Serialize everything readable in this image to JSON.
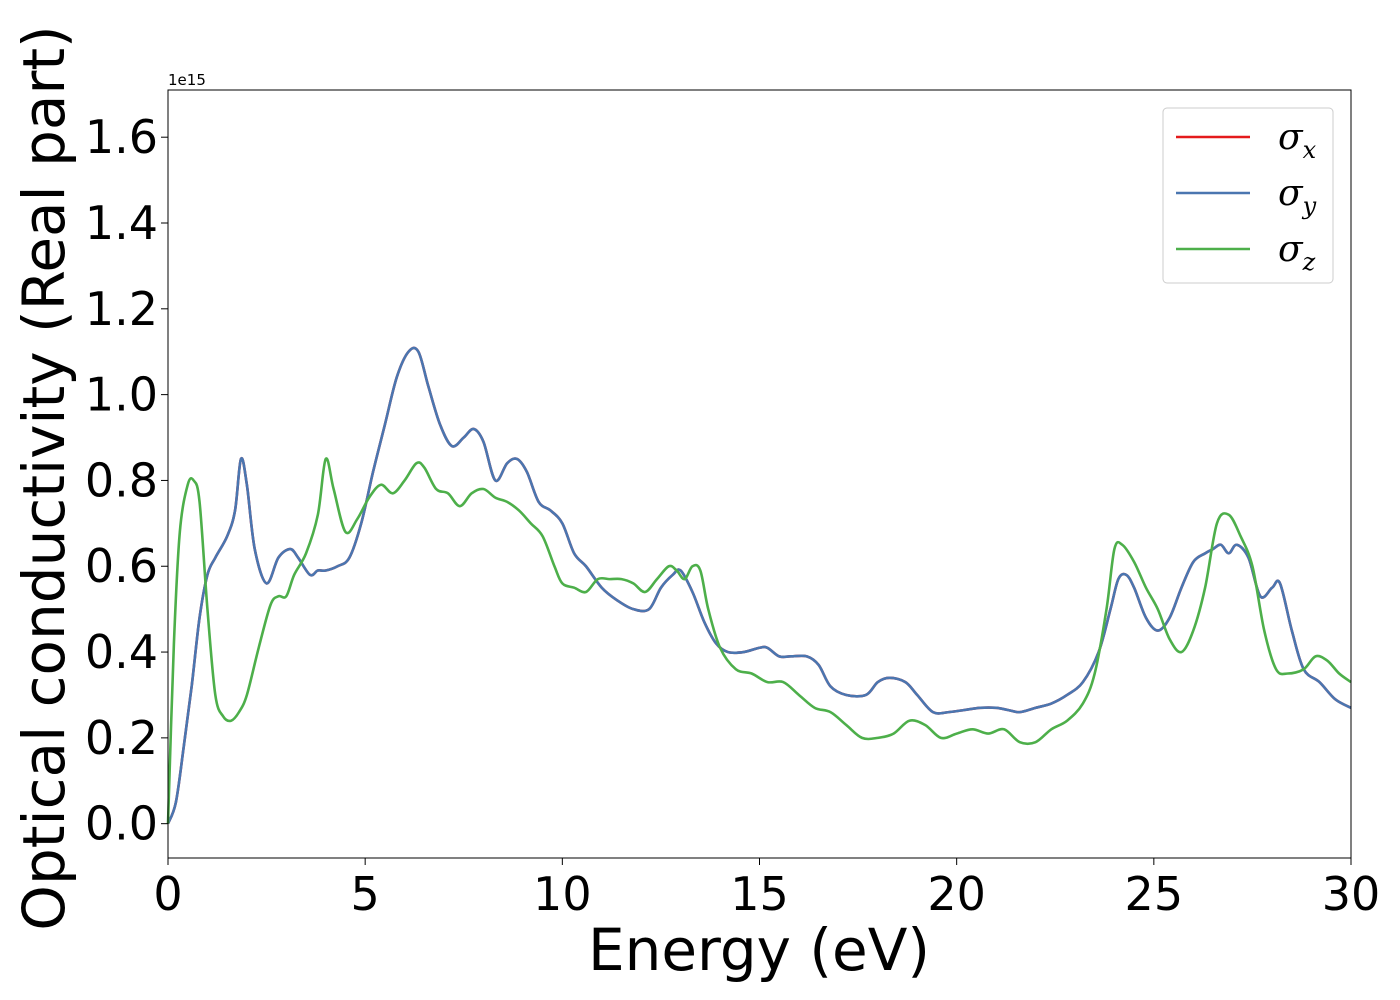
{
  "chart_data": {
    "type": "line",
    "xlabel": "Energy (eV)",
    "ylabel": "Optical conductivity (Real part)",
    "y_offset_label": "1e15",
    "xlim": [
      0,
      30
    ],
    "ylim": [
      -0.08,
      1.71
    ],
    "xticks": [
      0,
      5,
      10,
      15,
      20,
      25,
      30
    ],
    "xtick_labels": [
      "0",
      "5",
      "10",
      "15",
      "20",
      "25",
      "30"
    ],
    "yticks": [
      0.0,
      0.2,
      0.4,
      0.6,
      0.8,
      1.0,
      1.2,
      1.4,
      1.6
    ],
    "ytick_labels": [
      "0.0",
      "0.2",
      "0.4",
      "0.6",
      "0.8",
      "1.0",
      "1.2",
      "1.4",
      "1.6"
    ],
    "grid": false,
    "legend_position": "top-right",
    "series": [
      {
        "name": "σx",
        "label_main": "σ",
        "label_sub": "x",
        "color": "#e41a1c",
        "x": [
          0,
          0.2,
          0.4,
          0.6,
          0.8,
          1.0,
          1.2,
          1.5,
          1.7,
          1.85,
          2.0,
          2.2,
          2.5,
          2.8,
          3.1,
          3.3,
          3.6,
          3.8,
          4.0,
          4.3,
          4.6,
          4.9,
          5.2,
          5.5,
          5.8,
          6.1,
          6.35,
          6.6,
          6.9,
          7.2,
          7.5,
          7.75,
          8.0,
          8.3,
          8.6,
          8.85,
          9.1,
          9.4,
          9.7,
          10.0,
          10.3,
          10.6,
          11.0,
          11.4,
          11.8,
          12.2,
          12.5,
          12.8,
          13.0,
          13.3,
          13.6,
          13.9,
          14.2,
          14.6,
          15.0,
          15.2,
          15.5,
          15.8,
          16.2,
          16.5,
          16.8,
          17.2,
          17.7,
          18.0,
          18.3,
          18.7,
          19.0,
          19.4,
          19.8,
          20.2,
          20.6,
          21.0,
          21.3,
          21.6,
          22.0,
          22.4,
          22.8,
          23.2,
          23.6,
          23.9,
          24.1,
          24.3,
          24.5,
          24.8,
          25.1,
          25.4,
          25.7,
          26.0,
          26.3,
          26.5,
          26.7,
          26.9,
          27.1,
          27.4,
          27.7,
          28.0,
          28.2,
          28.5,
          28.8,
          29.2,
          29.6,
          30.0
        ],
        "y": [
          0.0,
          0.05,
          0.18,
          0.32,
          0.48,
          0.58,
          0.62,
          0.67,
          0.73,
          0.85,
          0.79,
          0.64,
          0.56,
          0.62,
          0.64,
          0.62,
          0.58,
          0.59,
          0.59,
          0.6,
          0.62,
          0.7,
          0.82,
          0.93,
          1.04,
          1.1,
          1.1,
          1.02,
          0.93,
          0.88,
          0.9,
          0.92,
          0.89,
          0.8,
          0.84,
          0.85,
          0.82,
          0.75,
          0.73,
          0.7,
          0.63,
          0.6,
          0.55,
          0.52,
          0.5,
          0.5,
          0.55,
          0.58,
          0.59,
          0.54,
          0.47,
          0.42,
          0.4,
          0.4,
          0.41,
          0.41,
          0.39,
          0.39,
          0.39,
          0.37,
          0.32,
          0.3,
          0.3,
          0.33,
          0.34,
          0.33,
          0.3,
          0.26,
          0.26,
          0.265,
          0.27,
          0.27,
          0.265,
          0.26,
          0.27,
          0.28,
          0.3,
          0.33,
          0.4,
          0.5,
          0.57,
          0.58,
          0.55,
          0.48,
          0.45,
          0.48,
          0.55,
          0.61,
          0.63,
          0.64,
          0.65,
          0.63,
          0.65,
          0.62,
          0.53,
          0.55,
          0.56,
          0.45,
          0.36,
          0.33,
          0.29,
          0.27
        ]
      },
      {
        "name": "σy",
        "label_main": "σ",
        "label_sub": "y",
        "color": "#4a76b0",
        "x": [
          0,
          0.2,
          0.4,
          0.6,
          0.8,
          1.0,
          1.2,
          1.5,
          1.7,
          1.85,
          2.0,
          2.2,
          2.5,
          2.8,
          3.1,
          3.3,
          3.6,
          3.8,
          4.0,
          4.3,
          4.6,
          4.9,
          5.2,
          5.5,
          5.8,
          6.1,
          6.35,
          6.6,
          6.9,
          7.2,
          7.5,
          7.75,
          8.0,
          8.3,
          8.6,
          8.85,
          9.1,
          9.4,
          9.7,
          10.0,
          10.3,
          10.6,
          11.0,
          11.4,
          11.8,
          12.2,
          12.5,
          12.8,
          13.0,
          13.3,
          13.6,
          13.9,
          14.2,
          14.6,
          15.0,
          15.2,
          15.5,
          15.8,
          16.2,
          16.5,
          16.8,
          17.2,
          17.7,
          18.0,
          18.3,
          18.7,
          19.0,
          19.4,
          19.8,
          20.2,
          20.6,
          21.0,
          21.3,
          21.6,
          22.0,
          22.4,
          22.8,
          23.2,
          23.6,
          23.9,
          24.1,
          24.3,
          24.5,
          24.8,
          25.1,
          25.4,
          25.7,
          26.0,
          26.3,
          26.5,
          26.7,
          26.9,
          27.1,
          27.4,
          27.7,
          28.0,
          28.2,
          28.5,
          28.8,
          29.2,
          29.6,
          30.0
        ],
        "y": [
          0.0,
          0.05,
          0.18,
          0.32,
          0.48,
          0.58,
          0.62,
          0.67,
          0.73,
          0.85,
          0.79,
          0.64,
          0.56,
          0.62,
          0.64,
          0.62,
          0.58,
          0.59,
          0.59,
          0.6,
          0.62,
          0.7,
          0.82,
          0.93,
          1.04,
          1.1,
          1.1,
          1.02,
          0.93,
          0.88,
          0.9,
          0.92,
          0.89,
          0.8,
          0.84,
          0.85,
          0.82,
          0.75,
          0.73,
          0.7,
          0.63,
          0.6,
          0.55,
          0.52,
          0.5,
          0.5,
          0.55,
          0.58,
          0.59,
          0.54,
          0.47,
          0.42,
          0.4,
          0.4,
          0.41,
          0.41,
          0.39,
          0.39,
          0.39,
          0.37,
          0.32,
          0.3,
          0.3,
          0.33,
          0.34,
          0.33,
          0.3,
          0.26,
          0.26,
          0.265,
          0.27,
          0.27,
          0.265,
          0.26,
          0.27,
          0.28,
          0.3,
          0.33,
          0.4,
          0.5,
          0.57,
          0.58,
          0.55,
          0.48,
          0.45,
          0.48,
          0.55,
          0.61,
          0.63,
          0.64,
          0.65,
          0.63,
          0.65,
          0.62,
          0.53,
          0.55,
          0.56,
          0.45,
          0.36,
          0.33,
          0.29,
          0.27
        ]
      },
      {
        "name": "σz",
        "label_main": "σ",
        "label_sub": "z",
        "color": "#4daf4a",
        "x": [
          0,
          0.15,
          0.3,
          0.5,
          0.65,
          0.8,
          1.0,
          1.2,
          1.4,
          1.6,
          1.8,
          2.0,
          2.3,
          2.6,
          2.8,
          3.0,
          3.2,
          3.5,
          3.8,
          4.0,
          4.2,
          4.5,
          4.8,
          5.1,
          5.4,
          5.7,
          6.0,
          6.3,
          6.5,
          6.8,
          7.1,
          7.4,
          7.7,
          8.0,
          8.3,
          8.6,
          8.9,
          9.2,
          9.5,
          9.8,
          10.0,
          10.3,
          10.6,
          10.9,
          11.2,
          11.5,
          11.8,
          12.1,
          12.4,
          12.7,
          12.9,
          13.1,
          13.3,
          13.5,
          13.7,
          14.0,
          14.4,
          14.8,
          15.2,
          15.6,
          16.0,
          16.4,
          16.8,
          17.2,
          17.6,
          18.0,
          18.4,
          18.8,
          19.2,
          19.6,
          20.0,
          20.4,
          20.8,
          21.2,
          21.6,
          22.0,
          22.4,
          22.8,
          23.2,
          23.5,
          23.8,
          24.0,
          24.2,
          24.5,
          24.8,
          25.1,
          25.4,
          25.7,
          26.0,
          26.3,
          26.6,
          26.9,
          27.2,
          27.5,
          27.8,
          28.1,
          28.4,
          28.8,
          29.1,
          29.4,
          29.7,
          30.0
        ],
        "y": [
          0.0,
          0.42,
          0.68,
          0.79,
          0.8,
          0.75,
          0.5,
          0.3,
          0.25,
          0.24,
          0.26,
          0.3,
          0.41,
          0.51,
          0.53,
          0.53,
          0.58,
          0.63,
          0.72,
          0.85,
          0.78,
          0.68,
          0.71,
          0.76,
          0.79,
          0.77,
          0.8,
          0.84,
          0.83,
          0.78,
          0.77,
          0.74,
          0.77,
          0.78,
          0.76,
          0.75,
          0.73,
          0.7,
          0.67,
          0.6,
          0.56,
          0.55,
          0.54,
          0.57,
          0.57,
          0.57,
          0.56,
          0.54,
          0.57,
          0.6,
          0.59,
          0.57,
          0.6,
          0.59,
          0.5,
          0.41,
          0.36,
          0.35,
          0.33,
          0.33,
          0.3,
          0.27,
          0.26,
          0.23,
          0.2,
          0.2,
          0.21,
          0.24,
          0.23,
          0.2,
          0.21,
          0.22,
          0.21,
          0.22,
          0.19,
          0.19,
          0.22,
          0.24,
          0.28,
          0.35,
          0.5,
          0.64,
          0.65,
          0.61,
          0.55,
          0.5,
          0.43,
          0.4,
          0.45,
          0.55,
          0.7,
          0.72,
          0.67,
          0.6,
          0.45,
          0.36,
          0.35,
          0.36,
          0.39,
          0.38,
          0.35,
          0.33
        ]
      }
    ]
  }
}
